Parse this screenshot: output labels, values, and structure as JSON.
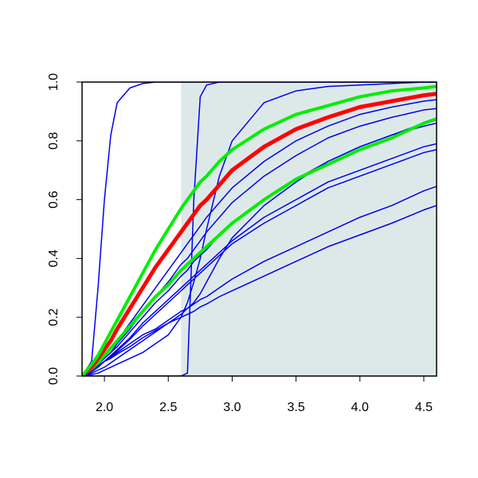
{
  "chart_data": {
    "type": "line",
    "x": [
      1.825,
      1.9,
      1.95,
      2.0,
      2.05,
      2.1,
      2.2,
      2.3,
      2.4,
      2.5,
      2.6,
      2.65,
      2.7,
      2.75,
      2.8,
      2.9,
      3.0,
      3.25,
      3.5,
      3.75,
      4.0,
      4.25,
      4.5,
      4.6
    ],
    "series": [
      {
        "color": "#0000ee",
        "linewidth": 1.5,
        "values": [
          0,
          0.05,
          0.3,
          0.6,
          0.82,
          0.93,
          0.98,
          0.995,
          1,
          1,
          1,
          1,
          1,
          1,
          1,
          1,
          1,
          1,
          1,
          1,
          1,
          1,
          1,
          1
        ]
      },
      {
        "color": "#0000ee",
        "linewidth": 1.5,
        "values": [
          0,
          0,
          0,
          0,
          0,
          0,
          0,
          0,
          0,
          0,
          0,
          0.01,
          0.6,
          0.95,
          0.99,
          1,
          1,
          1,
          1,
          1,
          1,
          1,
          1,
          1
        ]
      },
      {
        "color": "#0000ee",
        "linewidth": 1.5,
        "values": [
          0,
          0.005,
          0.01,
          0.02,
          0.03,
          0.04,
          0.06,
          0.08,
          0.11,
          0.14,
          0.2,
          0.25,
          0.32,
          0.4,
          0.5,
          0.68,
          0.8,
          0.93,
          0.97,
          0.985,
          0.99,
          0.995,
          1,
          1
        ]
      },
      {
        "color": "#0000ee",
        "linewidth": 1.5,
        "values": [
          0,
          0.02,
          0.04,
          0.07,
          0.09,
          0.12,
          0.18,
          0.24,
          0.3,
          0.36,
          0.42,
          0.45,
          0.48,
          0.51,
          0.54,
          0.59,
          0.64,
          0.73,
          0.8,
          0.85,
          0.89,
          0.915,
          0.935,
          0.94
        ]
      },
      {
        "color": "#0000ee",
        "linewidth": 1.5,
        "values": [
          0,
          0.02,
          0.04,
          0.06,
          0.08,
          0.11,
          0.16,
          0.22,
          0.27,
          0.32,
          0.38,
          0.4,
          0.43,
          0.46,
          0.49,
          0.54,
          0.59,
          0.68,
          0.75,
          0.81,
          0.85,
          0.88,
          0.905,
          0.91
        ]
      },
      {
        "color": "#0000ee",
        "linewidth": 1.5,
        "values": [
          0,
          0.02,
          0.04,
          0.06,
          0.08,
          0.1,
          0.15,
          0.2,
          0.25,
          0.29,
          0.34,
          0.36,
          0.39,
          0.41,
          0.43,
          0.48,
          0.52,
          0.6,
          0.67,
          0.73,
          0.78,
          0.82,
          0.86,
          0.87
        ]
      },
      {
        "color": "#0000ee",
        "linewidth": 1.5,
        "values": [
          0,
          0.015,
          0.03,
          0.05,
          0.07,
          0.09,
          0.13,
          0.18,
          0.22,
          0.26,
          0.3,
          0.32,
          0.34,
          0.36,
          0.38,
          0.42,
          0.46,
          0.54,
          0.6,
          0.66,
          0.7,
          0.74,
          0.78,
          0.79
        ]
      },
      {
        "color": "#0000ee",
        "linewidth": 1.5,
        "values": [
          0,
          0.015,
          0.03,
          0.05,
          0.065,
          0.085,
          0.125,
          0.17,
          0.21,
          0.25,
          0.29,
          0.31,
          0.33,
          0.35,
          0.37,
          0.41,
          0.45,
          0.52,
          0.58,
          0.64,
          0.68,
          0.72,
          0.76,
          0.77
        ]
      },
      {
        "color": "#0000ee",
        "linewidth": 1.5,
        "values": [
          0,
          0.02,
          0.035,
          0.05,
          0.06,
          0.08,
          0.11,
          0.14,
          0.16,
          0.19,
          0.22,
          0.23,
          0.245,
          0.26,
          0.27,
          0.3,
          0.33,
          0.39,
          0.44,
          0.49,
          0.54,
          0.58,
          0.63,
          0.645
        ]
      },
      {
        "color": "#0000ee",
        "linewidth": 1.5,
        "values": [
          0,
          0.02,
          0.035,
          0.05,
          0.06,
          0.075,
          0.1,
          0.13,
          0.155,
          0.18,
          0.2,
          0.21,
          0.22,
          0.235,
          0.245,
          0.27,
          0.29,
          0.34,
          0.39,
          0.44,
          0.48,
          0.52,
          0.565,
          0.58
        ]
      },
      {
        "color": "#0000ee",
        "linewidth": 1.5,
        "values": [
          0,
          0.01,
          0.02,
          0.03,
          0.045,
          0.06,
          0.09,
          0.12,
          0.15,
          0.18,
          0.21,
          0.23,
          0.25,
          0.28,
          0.32,
          0.4,
          0.47,
          0.58,
          0.66,
          0.73,
          0.78,
          0.82,
          0.85,
          0.86
        ]
      },
      {
        "color": "#00ee00",
        "linewidth": 4,
        "values": [
          0,
          0.025,
          0.045,
          0.07,
          0.095,
          0.12,
          0.17,
          0.22,
          0.27,
          0.31,
          0.36,
          0.38,
          0.4,
          0.42,
          0.44,
          0.48,
          0.52,
          0.6,
          0.67,
          0.72,
          0.77,
          0.81,
          0.86,
          0.875
        ]
      },
      {
        "color": "#ff0000",
        "linewidth": 5,
        "values": [
          0,
          0.03,
          0.06,
          0.09,
          0.12,
          0.16,
          0.23,
          0.3,
          0.37,
          0.43,
          0.49,
          0.52,
          0.55,
          0.58,
          0.6,
          0.65,
          0.7,
          0.78,
          0.84,
          0.88,
          0.915,
          0.935,
          0.955,
          0.96
        ]
      },
      {
        "color": "#00ee00",
        "linewidth": 4,
        "values": [
          0,
          0.04,
          0.07,
          0.11,
          0.15,
          0.19,
          0.27,
          0.35,
          0.43,
          0.5,
          0.57,
          0.6,
          0.63,
          0.66,
          0.68,
          0.73,
          0.77,
          0.84,
          0.89,
          0.92,
          0.95,
          0.97,
          0.98,
          0.985
        ]
      }
    ],
    "shaded_region": {
      "x": [
        2.6,
        4.6
      ],
      "color": "#dde9e9"
    },
    "xlim": [
      1.825,
      4.6
    ],
    "ylim": [
      0,
      1
    ],
    "xticks": [
      {
        "value": 2,
        "label": "2.0"
      },
      2.5,
      {
        "value": 3,
        "label": "3.0"
      },
      3.5,
      {
        "value": 4,
        "label": "4.0"
      },
      4.5
    ],
    "yticks": [
      {
        "value": 0,
        "label": "0.0"
      },
      0.2,
      0.4,
      0.6,
      0.8,
      {
        "value": 1,
        "label": "1.0"
      }
    ]
  }
}
